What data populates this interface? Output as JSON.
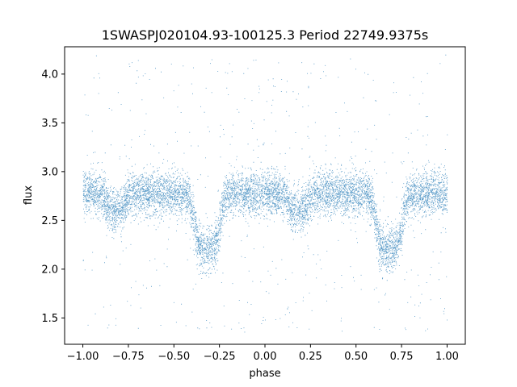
{
  "chart_data": {
    "type": "scatter",
    "title": "1SWASPJ020104.93-100125.3 Period 22749.9375s",
    "xlabel": "phase",
    "ylabel": "flux",
    "xlim": [
      -1.1,
      1.1
    ],
    "ylim": [
      1.23,
      4.28
    ],
    "xticks": [
      -1.0,
      -0.75,
      -0.5,
      -0.25,
      0.0,
      0.25,
      0.5,
      0.75,
      1.0
    ],
    "xtick_labels": [
      "−1.00",
      "−0.75",
      "−0.50",
      "−0.25",
      "0.00",
      "0.25",
      "0.50",
      "0.75",
      "1.00"
    ],
    "yticks": [
      1.5,
      2.0,
      2.5,
      3.0,
      3.5,
      4.0
    ],
    "ytick_labels": [
      "1.5",
      "2.0",
      "2.5",
      "3.0",
      "3.5",
      "4.0"
    ],
    "grid": false,
    "marker_color": "#1f77b4",
    "phase_range": [
      -1.0,
      1.0
    ],
    "baseline_flux": 2.78,
    "primary_eclipse": {
      "phases": [
        -0.32,
        0.68
      ],
      "min_flux": 2.2,
      "width": 0.08
    },
    "secondary_eclipse": {
      "phases": [
        0.18,
        -0.82
      ],
      "min_flux": 2.6,
      "width": 0.06
    }
  }
}
